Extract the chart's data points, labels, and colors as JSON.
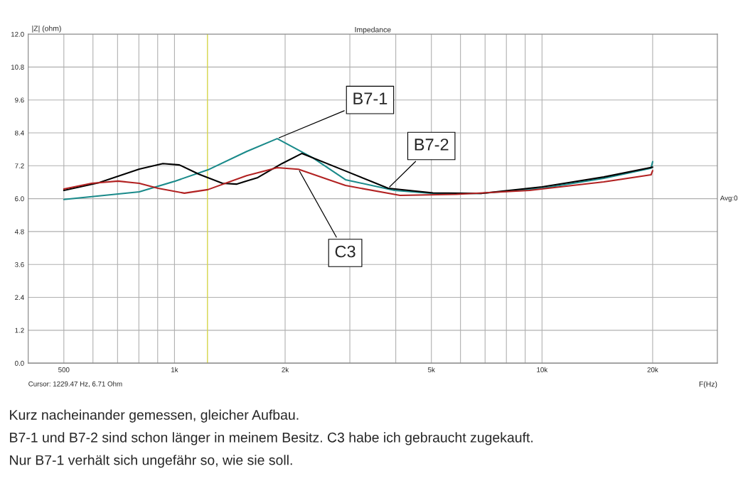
{
  "chart_data": {
    "type": "line",
    "title": "Impedance",
    "ylabel": "|Z| (ohm)",
    "xlabel": "F(Hz)",
    "log": "x",
    "grid": true,
    "legend": false,
    "marker": "none",
    "line_style": "solid",
    "xlim": [
      400,
      30000
    ],
    "xticks": [
      {
        "value": 500,
        "label": "500"
      },
      {
        "value": 600,
        "label": null
      },
      {
        "value": 700,
        "label": null
      },
      {
        "value": 800,
        "label": null
      },
      {
        "value": 900,
        "label": null
      },
      {
        "value": 1000,
        "label": "1k"
      },
      {
        "value": 2000,
        "label": "2k"
      },
      {
        "value": 3000,
        "label": null
      },
      {
        "value": 4000,
        "label": null
      },
      {
        "value": 5000,
        "label": "5k"
      },
      {
        "value": 6000,
        "label": null
      },
      {
        "value": 7000,
        "label": null
      },
      {
        "value": 8000,
        "label": null
      },
      {
        "value": 9000,
        "label": null
      },
      {
        "value": 10000,
        "label": "10k"
      },
      {
        "value": 20000,
        "label": "20k"
      }
    ],
    "ylim": [
      0,
      12
    ],
    "yticks": [
      {
        "value": 0,
        "label": "0.0"
      },
      {
        "value": 1.2,
        "label": "1.2"
      },
      {
        "value": 2.4,
        "label": "2.4"
      },
      {
        "value": 3.6,
        "label": "3.6"
      },
      {
        "value": 4.8,
        "label": "4.8"
      },
      {
        "value": 6.0,
        "label": "6.0"
      },
      {
        "value": 7.2,
        "label": "7.2"
      },
      {
        "value": 8.4,
        "label": "8.4"
      },
      {
        "value": 9.6,
        "label": "9.6"
      },
      {
        "value": 10.8,
        "label": "10.8"
      },
      {
        "value": 12.0,
        "label": "12.0"
      }
    ],
    "ref_lines": [
      {
        "axis": "x",
        "value": 1229.47,
        "color": "#d6d64a"
      }
    ],
    "series": [
      {
        "name": "B7-1",
        "color": "#1a8a8a",
        "x": [
          500,
          802,
          1004,
          1233,
          1571,
          1903,
          2379,
          2919,
          3969,
          5050,
          6820,
          10010,
          14720,
          19800,
          20000
        ],
        "values": [
          5.97,
          6.25,
          6.64,
          7.05,
          7.72,
          8.19,
          7.49,
          6.69,
          6.3,
          6.19,
          6.19,
          6.38,
          6.74,
          7.11,
          7.35
        ]
      },
      {
        "name": "B7-2",
        "color": "#000000",
        "x": [
          500,
          622,
          802,
          930,
          1031,
          1166,
          1351,
          1474,
          1685,
          1961,
          2223,
          2919,
          3815,
          5050,
          6820,
          10010,
          14720,
          20000
        ],
        "values": [
          6.3,
          6.58,
          7.08,
          7.28,
          7.23,
          6.89,
          6.56,
          6.53,
          6.77,
          7.28,
          7.65,
          7.01,
          6.38,
          6.21,
          6.19,
          6.43,
          6.79,
          7.15
        ]
      },
      {
        "name": "C3",
        "color": "#b22222",
        "x": [
          500,
          595,
          702,
          802,
          902,
          1064,
          1233,
          1571,
          1903,
          2175,
          2919,
          4110,
          5850,
          9250,
          14720,
          19800,
          20000
        ],
        "values": [
          6.35,
          6.56,
          6.64,
          6.56,
          6.38,
          6.2,
          6.33,
          6.84,
          7.13,
          7.07,
          6.48,
          6.12,
          6.16,
          6.3,
          6.61,
          6.87,
          7.02
        ]
      }
    ],
    "annotations": [
      "Cursor: 1229.47 Hz, 6.71 Ohm",
      "Avg:0",
      "Kurz nacheinander gemessen, gleicher Aufbau.",
      "B7-1 und B7-2 sind schon länger in meinem Besitz. C3 habe ich gebraucht zugekauft.",
      "Nur B7-1 verhält sich ungefähr so, wie sie soll."
    ]
  }
}
